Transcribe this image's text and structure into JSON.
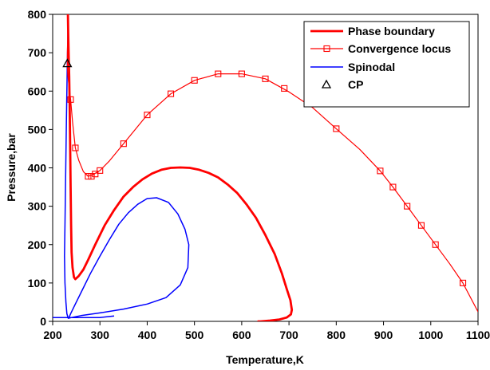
{
  "chart_data": {
    "type": "line",
    "title": "",
    "xlabel": "Temperature,K",
    "ylabel": "Pressure,bar",
    "xlim": [
      200,
      1100
    ],
    "ylim": [
      0,
      800
    ],
    "x_ticks": [
      200,
      300,
      400,
      500,
      600,
      700,
      800,
      900,
      1000,
      1100
    ],
    "y_ticks": [
      0,
      100,
      200,
      300,
      400,
      500,
      600,
      700,
      800
    ],
    "grid": false,
    "legend_position": "top-right",
    "legend": [
      {
        "key": "phase",
        "label": "Phase boundary"
      },
      {
        "key": "conv",
        "label": "Convergence locus"
      },
      {
        "key": "spin",
        "label": "Spinodal"
      },
      {
        "key": "cp",
        "label": "CP"
      }
    ],
    "series": [
      {
        "key": "phase",
        "name": "Phase boundary",
        "color": "#ff0000",
        "marker": "none",
        "points": [
          [
            232,
            810
          ],
          [
            233,
            750
          ],
          [
            234,
            690
          ],
          [
            235,
            640
          ],
          [
            236,
            560
          ],
          [
            237,
            460
          ],
          [
            238,
            350
          ],
          [
            239,
            250
          ],
          [
            240,
            180
          ],
          [
            242,
            140
          ],
          [
            245,
            115
          ],
          [
            248,
            110
          ],
          [
            255,
            118
          ],
          [
            265,
            135
          ],
          [
            275,
            160
          ],
          [
            290,
            200
          ],
          [
            310,
            250
          ],
          [
            330,
            290
          ],
          [
            350,
            325
          ],
          [
            370,
            350
          ],
          [
            390,
            370
          ],
          [
            410,
            385
          ],
          [
            430,
            395
          ],
          [
            450,
            400
          ],
          [
            470,
            401
          ],
          [
            490,
            400
          ],
          [
            510,
            395
          ],
          [
            530,
            387
          ],
          [
            550,
            375
          ],
          [
            570,
            357
          ],
          [
            590,
            335
          ],
          [
            610,
            305
          ],
          [
            630,
            270
          ],
          [
            650,
            225
          ],
          [
            670,
            175
          ],
          [
            685,
            125
          ],
          [
            695,
            85
          ],
          [
            703,
            55
          ],
          [
            706,
            30
          ],
          [
            704,
            18
          ],
          [
            695,
            10
          ],
          [
            680,
            5
          ],
          [
            660,
            2
          ],
          [
            640,
            0
          ],
          [
            635,
            0
          ]
        ]
      },
      {
        "key": "conv",
        "name": "Convergence locus",
        "color": "#ff0000",
        "marker": "square",
        "points": [
          [
            233,
            810
          ],
          [
            232,
            760
          ],
          [
            231,
            700
          ],
          [
            231,
            670
          ],
          [
            232,
            640
          ],
          [
            235,
            610
          ],
          [
            238,
            578
          ],
          [
            242,
            520
          ],
          [
            248,
            452
          ],
          [
            255,
            420
          ],
          [
            265,
            390
          ],
          [
            275,
            378
          ],
          [
            285,
            382
          ],
          [
            300,
            393
          ],
          [
            320,
            418
          ],
          [
            350,
            463
          ],
          [
            400,
            538
          ],
          [
            450,
            593
          ],
          [
            500,
            628
          ],
          [
            550,
            645
          ],
          [
            600,
            645
          ],
          [
            650,
            632
          ],
          [
            700,
            598
          ],
          [
            750,
            557
          ],
          [
            800,
            502
          ],
          [
            850,
            448
          ],
          [
            893,
            392
          ],
          [
            920,
            350
          ],
          [
            950,
            300
          ],
          [
            980,
            250
          ],
          [
            1010,
            200
          ],
          [
            1040,
            150
          ],
          [
            1068,
            100
          ],
          [
            1100,
            25
          ]
        ],
        "markers": [
          [
            238,
            578
          ],
          [
            248,
            452
          ],
          [
            275,
            378
          ],
          [
            282,
            378
          ],
          [
            290,
            384
          ],
          [
            300,
            393
          ],
          [
            350,
            463
          ],
          [
            400,
            538
          ],
          [
            450,
            593
          ],
          [
            500,
            628
          ],
          [
            550,
            645
          ],
          [
            600,
            645
          ],
          [
            650,
            632
          ],
          [
            690,
            607
          ],
          [
            800,
            502
          ],
          [
            893,
            392
          ],
          [
            920,
            350
          ],
          [
            950,
            300
          ],
          [
            980,
            250
          ],
          [
            1010,
            200
          ],
          [
            1068,
            100
          ]
        ]
      },
      {
        "key": "spin",
        "name": "Spinodal",
        "color": "#0000ff",
        "marker": "none",
        "segments": [
          [
            [
              200,
              10
            ],
            [
              300,
              10
            ],
            [
              330,
              14
            ]
          ],
          [
            [
              233,
              810
            ],
            [
              232,
              740
            ],
            [
              231,
              680
            ],
            [
              230,
              600
            ],
            [
              229,
              520
            ],
            [
              228,
              430
            ],
            [
              227,
              340
            ],
            [
              226,
              250
            ],
            [
              225,
              170
            ],
            [
              226,
              100
            ],
            [
              228,
              50
            ],
            [
              230,
              20
            ],
            [
              233,
              8
            ],
            [
              240,
              10
            ],
            [
              260,
              15
            ],
            [
              300,
              22
            ],
            [
              350,
              32
            ],
            [
              400,
              45
            ],
            [
              440,
              62
            ],
            [
              470,
              95
            ],
            [
              486,
              140
            ],
            [
              488,
              200
            ],
            [
              480,
              240
            ],
            [
              465,
              280
            ],
            [
              445,
              310
            ],
            [
              420,
              322
            ],
            [
              400,
              320
            ],
            [
              380,
              305
            ],
            [
              360,
              283
            ],
            [
              340,
              253
            ],
            [
              320,
              213
            ],
            [
              300,
              170
            ],
            [
              280,
              125
            ],
            [
              262,
              80
            ],
            [
              248,
              45
            ],
            [
              238,
              20
            ],
            [
              234,
              8
            ]
          ]
        ]
      }
    ],
    "critical_point": {
      "key": "cp",
      "name": "CP",
      "x": 231,
      "y": 672,
      "marker": "triangle-open",
      "color": "#000000"
    }
  }
}
